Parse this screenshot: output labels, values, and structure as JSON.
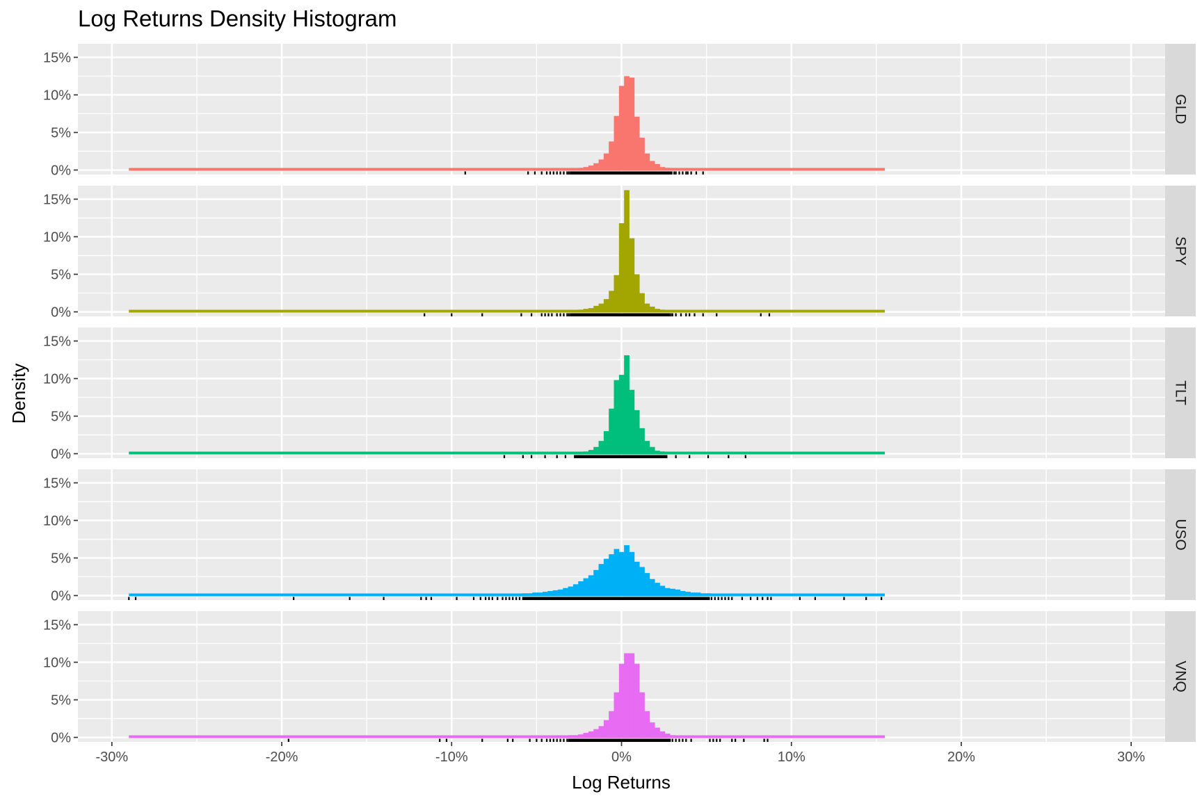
{
  "chart_data": {
    "type": "histogram",
    "title": "Log Returns Density Histogram",
    "xlabel": "Log Returns",
    "ylabel": "Density",
    "x_ticks": [
      -0.3,
      -0.2,
      -0.1,
      0.0,
      0.1,
      0.2,
      0.3
    ],
    "x_tick_labels": [
      "-30%",
      "-20%",
      "-10%",
      "0%",
      "10%",
      "20%",
      "30%"
    ],
    "xlim": [
      -0.32,
      0.32
    ],
    "y_ticks": [
      0,
      0.05,
      0.1,
      0.15
    ],
    "y_tick_labels": [
      "0%",
      "5%",
      "10%",
      "15%"
    ],
    "ylim": [
      -0.006,
      0.168
    ],
    "grid": true,
    "bin_width": 0.003,
    "series": [
      {
        "name": "GLD",
        "color": "#F8766D",
        "support": [
          -0.29,
          0.155
        ],
        "bins_center": [
          -0.039,
          -0.036,
          -0.033,
          -0.03,
          -0.027,
          -0.024,
          -0.021,
          -0.018,
          -0.015,
          -0.012,
          -0.009,
          -0.006,
          -0.003,
          0.0,
          0.003,
          0.006,
          0.009,
          0.012,
          0.015,
          0.018,
          0.021,
          0.024,
          0.027,
          0.03,
          0.033,
          0.036,
          0.039
        ],
        "density": [
          0.001,
          0.001,
          0.001,
          0.002,
          0.002,
          0.003,
          0.004,
          0.006,
          0.009,
          0.014,
          0.022,
          0.038,
          0.072,
          0.112,
          0.125,
          0.123,
          0.071,
          0.043,
          0.022,
          0.012,
          0.008,
          0.004,
          0.003,
          0.002,
          0.001,
          0.001,
          0.001
        ],
        "rug_x": [
          -0.092,
          -0.055,
          -0.051,
          -0.047,
          -0.044,
          -0.042,
          -0.04,
          -0.038,
          -0.036,
          -0.034,
          -0.032,
          -0.031,
          -0.03,
          -0.029,
          -0.028,
          0.031,
          0.032,
          0.034,
          0.036,
          0.038,
          0.039,
          0.041,
          0.044,
          0.048
        ],
        "rug_range": [
          -0.03,
          0.03
        ]
      },
      {
        "name": "SPY",
        "color": "#A3A500",
        "support": [
          -0.29,
          0.155
        ],
        "bins_center": [
          -0.039,
          -0.036,
          -0.033,
          -0.03,
          -0.027,
          -0.024,
          -0.021,
          -0.018,
          -0.015,
          -0.012,
          -0.009,
          -0.006,
          -0.003,
          0.0,
          0.003,
          0.006,
          0.009,
          0.012,
          0.015,
          0.018,
          0.021,
          0.024,
          0.027,
          0.03,
          0.033,
          0.036,
          0.039
        ],
        "density": [
          0.001,
          0.001,
          0.001,
          0.002,
          0.002,
          0.003,
          0.004,
          0.005,
          0.008,
          0.011,
          0.017,
          0.028,
          0.049,
          0.118,
          0.162,
          0.098,
          0.05,
          0.025,
          0.011,
          0.007,
          0.004,
          0.003,
          0.002,
          0.001,
          0.001,
          0.001,
          0.001
        ],
        "rug_x": [
          -0.116,
          -0.1,
          -0.082,
          -0.059,
          -0.053,
          -0.047,
          -0.045,
          -0.043,
          -0.041,
          -0.038,
          -0.036,
          -0.034,
          -0.032,
          -0.031,
          -0.03,
          0.028,
          0.029,
          0.03,
          0.032,
          0.035,
          0.038,
          0.04,
          0.043,
          0.048,
          0.056,
          0.082,
          0.087
        ],
        "rug_range": [
          -0.03,
          0.028
        ]
      },
      {
        "name": "TLT",
        "color": "#00BF7D",
        "support": [
          -0.29,
          0.155
        ],
        "bins_center": [
          -0.03,
          -0.027,
          -0.024,
          -0.021,
          -0.018,
          -0.015,
          -0.012,
          -0.009,
          -0.006,
          -0.003,
          0.0,
          0.003,
          0.006,
          0.009,
          0.012,
          0.015,
          0.018,
          0.021,
          0.024,
          0.027,
          0.03
        ],
        "density": [
          0.001,
          0.001,
          0.002,
          0.003,
          0.005,
          0.009,
          0.017,
          0.03,
          0.06,
          0.098,
          0.105,
          0.131,
          0.085,
          0.058,
          0.034,
          0.017,
          0.009,
          0.004,
          0.003,
          0.002,
          0.001
        ],
        "rug_x": [
          -0.069,
          -0.058,
          -0.053,
          -0.045,
          -0.038,
          -0.033,
          0.032,
          0.04,
          0.051,
          0.063,
          0.073
        ],
        "rug_range": [
          -0.028,
          0.027
        ]
      },
      {
        "name": "USO",
        "color": "#00B0F6",
        "support": [
          -0.29,
          0.155
        ],
        "bins_center": [
          -0.066,
          -0.063,
          -0.06,
          -0.057,
          -0.054,
          -0.051,
          -0.048,
          -0.045,
          -0.042,
          -0.039,
          -0.036,
          -0.033,
          -0.03,
          -0.027,
          -0.024,
          -0.021,
          -0.018,
          -0.015,
          -0.012,
          -0.009,
          -0.006,
          -0.003,
          0.0,
          0.003,
          0.006,
          0.009,
          0.012,
          0.015,
          0.018,
          0.021,
          0.024,
          0.027,
          0.03,
          0.033,
          0.036,
          0.039,
          0.042,
          0.045,
          0.048,
          0.051,
          0.054,
          0.057,
          0.06,
          0.063,
          0.066
        ],
        "density": [
          0.001,
          0.002,
          0.002,
          0.003,
          0.003,
          0.004,
          0.004,
          0.005,
          0.006,
          0.007,
          0.008,
          0.01,
          0.012,
          0.015,
          0.019,
          0.023,
          0.027,
          0.034,
          0.042,
          0.049,
          0.055,
          0.062,
          0.058,
          0.067,
          0.058,
          0.045,
          0.038,
          0.03,
          0.022,
          0.017,
          0.013,
          0.01,
          0.009,
          0.008,
          0.006,
          0.005,
          0.004,
          0.004,
          0.003,
          0.003,
          0.002,
          0.002,
          0.002,
          0.001,
          0.001
        ],
        "rug_x": [
          -0.29,
          -0.286,
          -0.193,
          -0.16,
          -0.14,
          -0.118,
          -0.115,
          -0.112,
          -0.097,
          -0.087,
          -0.083,
          -0.08,
          -0.078,
          -0.076,
          -0.073,
          -0.07,
          -0.068,
          -0.066,
          -0.064,
          -0.062,
          -0.06,
          -0.058,
          0.053,
          0.055,
          0.057,
          0.059,
          0.061,
          0.063,
          0.065,
          0.071,
          0.076,
          0.08,
          0.083,
          0.086,
          0.088,
          0.105,
          0.114,
          0.131,
          0.144,
          0.153
        ],
        "rug_range": [
          -0.058,
          0.052
        ]
      },
      {
        "name": "VNQ",
        "color": "#E76BF3",
        "support": [
          -0.29,
          0.155
        ],
        "bins_center": [
          -0.039,
          -0.036,
          -0.033,
          -0.03,
          -0.027,
          -0.024,
          -0.021,
          -0.018,
          -0.015,
          -0.012,
          -0.009,
          -0.006,
          -0.003,
          0.0,
          0.003,
          0.006,
          0.009,
          0.012,
          0.015,
          0.018,
          0.021,
          0.024,
          0.027,
          0.03,
          0.033,
          0.036,
          0.039
        ],
        "density": [
          0.001,
          0.002,
          0.002,
          0.003,
          0.003,
          0.004,
          0.006,
          0.008,
          0.011,
          0.015,
          0.023,
          0.035,
          0.06,
          0.098,
          0.112,
          0.112,
          0.098,
          0.06,
          0.035,
          0.02,
          0.013,
          0.008,
          0.005,
          0.003,
          0.002,
          0.002,
          0.001
        ],
        "rug_x": [
          -0.196,
          -0.107,
          -0.103,
          -0.082,
          -0.067,
          -0.064,
          -0.054,
          -0.05,
          -0.047,
          -0.044,
          -0.042,
          -0.04,
          -0.038,
          -0.036,
          -0.034,
          -0.032,
          -0.031,
          0.03,
          0.032,
          0.034,
          0.036,
          0.038,
          0.041,
          0.052,
          0.054,
          0.056,
          0.058,
          0.065,
          0.067,
          0.072,
          0.084,
          0.086
        ],
        "rug_range": [
          -0.031,
          0.029
        ]
      }
    ]
  }
}
